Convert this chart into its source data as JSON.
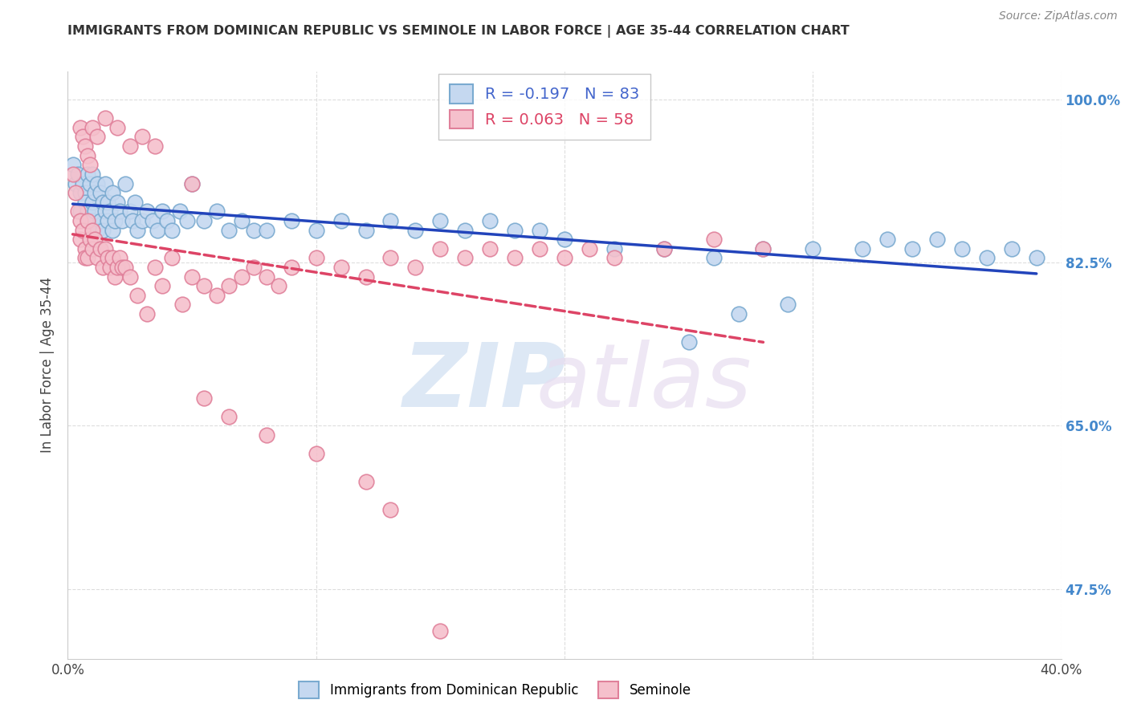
{
  "title": "IMMIGRANTS FROM DOMINICAN REPUBLIC VS SEMINOLE IN LABOR FORCE | AGE 35-44 CORRELATION CHART",
  "source": "Source: ZipAtlas.com",
  "ylabel": "In Labor Force | Age 35-44",
  "xlim": [
    0.0,
    0.4
  ],
  "ylim": [
    0.4,
    1.03
  ],
  "xticks": [
    0.0,
    0.1,
    0.2,
    0.3,
    0.4
  ],
  "xtick_labels": [
    "0.0%",
    "",
    "",
    "",
    "40.0%"
  ],
  "ytick_positions": [
    0.475,
    0.65,
    0.825,
    1.0
  ],
  "ytick_labels": [
    "47.5%",
    "65.0%",
    "82.5%",
    "100.0%"
  ],
  "blue_R": -0.197,
  "blue_N": 83,
  "pink_R": 0.063,
  "pink_N": 58,
  "blue_color": "#c5d8f0",
  "blue_edge": "#7aaad0",
  "pink_color": "#f5c0cc",
  "pink_edge": "#e0809a",
  "blue_line_color": "#2244bb",
  "pink_line_color": "#dd4466",
  "legend_blue_label": "Immigrants from Dominican Republic",
  "legend_pink_label": "Seminole",
  "blue_x": [
    0.002,
    0.003,
    0.004,
    0.005,
    0.005,
    0.006,
    0.007,
    0.007,
    0.008,
    0.008,
    0.009,
    0.009,
    0.01,
    0.01,
    0.01,
    0.011,
    0.011,
    0.012,
    0.012,
    0.013,
    0.013,
    0.014,
    0.014,
    0.015,
    0.015,
    0.016,
    0.016,
    0.017,
    0.018,
    0.018,
    0.019,
    0.02,
    0.021,
    0.022,
    0.023,
    0.025,
    0.026,
    0.027,
    0.028,
    0.03,
    0.032,
    0.034,
    0.036,
    0.038,
    0.04,
    0.042,
    0.045,
    0.048,
    0.05,
    0.055,
    0.06,
    0.065,
    0.07,
    0.075,
    0.08,
    0.09,
    0.1,
    0.11,
    0.12,
    0.13,
    0.14,
    0.15,
    0.16,
    0.17,
    0.18,
    0.19,
    0.2,
    0.22,
    0.24,
    0.26,
    0.28,
    0.3,
    0.32,
    0.33,
    0.34,
    0.35,
    0.36,
    0.37,
    0.38,
    0.39,
    0.29,
    0.27,
    0.25
  ],
  "blue_y": [
    0.93,
    0.91,
    0.92,
    0.9,
    0.88,
    0.91,
    0.9,
    0.89,
    0.92,
    0.88,
    0.91,
    0.87,
    0.92,
    0.89,
    0.87,
    0.9,
    0.88,
    0.91,
    0.86,
    0.9,
    0.87,
    0.89,
    0.86,
    0.91,
    0.88,
    0.89,
    0.87,
    0.88,
    0.9,
    0.86,
    0.87,
    0.89,
    0.88,
    0.87,
    0.91,
    0.88,
    0.87,
    0.89,
    0.86,
    0.87,
    0.88,
    0.87,
    0.86,
    0.88,
    0.87,
    0.86,
    0.88,
    0.87,
    0.91,
    0.87,
    0.88,
    0.86,
    0.87,
    0.86,
    0.86,
    0.87,
    0.86,
    0.87,
    0.86,
    0.87,
    0.86,
    0.87,
    0.86,
    0.87,
    0.86,
    0.86,
    0.85,
    0.84,
    0.84,
    0.83,
    0.84,
    0.84,
    0.84,
    0.85,
    0.84,
    0.85,
    0.84,
    0.83,
    0.84,
    0.83,
    0.78,
    0.77,
    0.74
  ],
  "pink_x": [
    0.002,
    0.003,
    0.004,
    0.005,
    0.005,
    0.006,
    0.007,
    0.007,
    0.008,
    0.008,
    0.009,
    0.01,
    0.01,
    0.011,
    0.012,
    0.013,
    0.014,
    0.015,
    0.016,
    0.017,
    0.018,
    0.019,
    0.02,
    0.021,
    0.022,
    0.023,
    0.025,
    0.028,
    0.032,
    0.035,
    0.038,
    0.042,
    0.046,
    0.05,
    0.055,
    0.06,
    0.065,
    0.07,
    0.075,
    0.08,
    0.085,
    0.09,
    0.1,
    0.11,
    0.12,
    0.13,
    0.14,
    0.15,
    0.16,
    0.17,
    0.18,
    0.19,
    0.2,
    0.21,
    0.22,
    0.24,
    0.26,
    0.28
  ],
  "pink_y": [
    0.92,
    0.9,
    0.88,
    0.87,
    0.85,
    0.86,
    0.84,
    0.83,
    0.87,
    0.83,
    0.85,
    0.86,
    0.84,
    0.85,
    0.83,
    0.84,
    0.82,
    0.84,
    0.83,
    0.82,
    0.83,
    0.81,
    0.82,
    0.83,
    0.82,
    0.82,
    0.81,
    0.79,
    0.77,
    0.82,
    0.8,
    0.83,
    0.78,
    0.81,
    0.8,
    0.79,
    0.8,
    0.81,
    0.82,
    0.81,
    0.8,
    0.82,
    0.83,
    0.82,
    0.81,
    0.83,
    0.82,
    0.84,
    0.83,
    0.84,
    0.83,
    0.84,
    0.83,
    0.84,
    0.83,
    0.84,
    0.85,
    0.84
  ],
  "pink_extra_low_x": [
    0.005,
    0.006,
    0.007,
    0.008,
    0.009,
    0.01,
    0.012,
    0.015,
    0.02,
    0.025,
    0.03,
    0.035,
    0.05,
    0.055,
    0.065,
    0.08,
    0.1,
    0.12,
    0.13,
    0.15
  ],
  "pink_extra_low_y": [
    0.97,
    0.96,
    0.95,
    0.94,
    0.93,
    0.97,
    0.96,
    0.98,
    0.97,
    0.95,
    0.96,
    0.95,
    0.91,
    0.68,
    0.66,
    0.64,
    0.62,
    0.59,
    0.56,
    0.43
  ]
}
